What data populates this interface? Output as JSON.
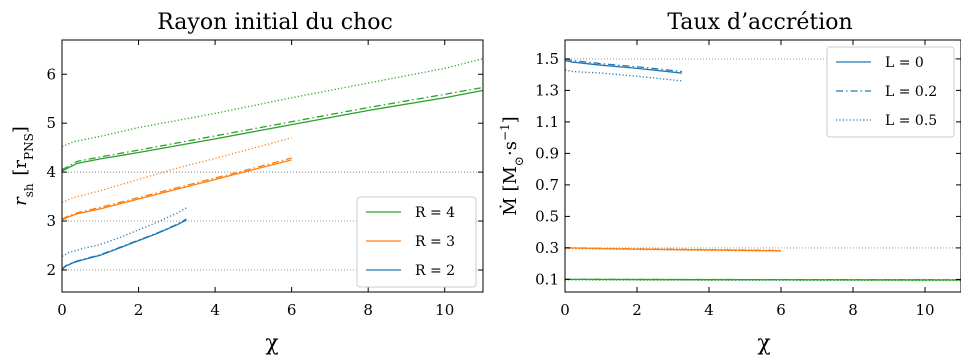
{
  "chart_data": [
    {
      "type": "line",
      "title": "Rayon initial du choc",
      "xlabel": "χ",
      "ylabel": {
        "main": "r",
        "sub": "sh",
        "unit": " [r",
        "unit_sub": "PNS",
        "close": "]"
      },
      "xlim": [
        0,
        11
      ],
      "ylim": [
        1.55,
        6.7
      ],
      "xticks": [
        0,
        2,
        4,
        6,
        8,
        10
      ],
      "yticks": [
        2,
        3,
        4,
        5,
        6
      ],
      "grid": {
        "horizontal_dotted_at": [
          2,
          3,
          4
        ]
      },
      "legend": {
        "placement": "lower-right",
        "entries": [
          {
            "label": "R = 4",
            "color": "#2ca02c"
          },
          {
            "label": "R = 3",
            "color": "#ff7f0e"
          },
          {
            "label": "R = 2",
            "color": "#1f77b4"
          }
        ]
      },
      "series": [
        {
          "group": "R = 4",
          "style": "solid",
          "color": "#2ca02c",
          "points": [
            [
              0,
              4.02
            ],
            [
              0.15,
              4.08
            ],
            [
              0.4,
              4.18
            ],
            [
              1,
              4.27
            ],
            [
              2,
              4.4
            ],
            [
              4,
              4.68
            ],
            [
              6,
              4.97
            ],
            [
              8,
              5.26
            ],
            [
              10,
              5.52
            ],
            [
              11,
              5.67
            ]
          ]
        },
        {
          "group": "R = 4",
          "style": "dashdot",
          "color": "#2ca02c",
          "points": [
            [
              0,
              4.05
            ],
            [
              0.15,
              4.11
            ],
            [
              0.4,
              4.22
            ],
            [
              1,
              4.31
            ],
            [
              2,
              4.45
            ],
            [
              4,
              4.74
            ],
            [
              6,
              5.03
            ],
            [
              8,
              5.32
            ],
            [
              10,
              5.59
            ],
            [
              11,
              5.73
            ]
          ]
        },
        {
          "group": "R = 4",
          "style": "dotted",
          "color": "#2ca02c",
          "points": [
            [
              0,
              4.52
            ],
            [
              0.3,
              4.62
            ],
            [
              1,
              4.73
            ],
            [
              2,
              4.91
            ],
            [
              4,
              5.2
            ],
            [
              6,
              5.52
            ],
            [
              8,
              5.82
            ],
            [
              10,
              6.12
            ],
            [
              11,
              6.32
            ]
          ]
        },
        {
          "group": "R = 3",
          "style": "solid",
          "color": "#ff7f0e",
          "points": [
            [
              0,
              3.02
            ],
            [
              0.15,
              3.08
            ],
            [
              0.4,
              3.15
            ],
            [
              1,
              3.25
            ],
            [
              2,
              3.45
            ],
            [
              3,
              3.65
            ],
            [
              4,
              3.85
            ],
            [
              5,
              4.05
            ],
            [
              6,
              4.25
            ]
          ]
        },
        {
          "group": "R = 3",
          "style": "dashdot",
          "color": "#ff7f0e",
          "points": [
            [
              0,
              3.04
            ],
            [
              0.15,
              3.1
            ],
            [
              0.4,
              3.17
            ],
            [
              1,
              3.28
            ],
            [
              2,
              3.48
            ],
            [
              3,
              3.68
            ],
            [
              4,
              3.88
            ],
            [
              5,
              4.08
            ],
            [
              6,
              4.29
            ]
          ]
        },
        {
          "group": "R = 3",
          "style": "dotted",
          "color": "#ff7f0e",
          "points": [
            [
              0,
              3.38
            ],
            [
              0.3,
              3.48
            ],
            [
              1,
              3.62
            ],
            [
              2,
              3.85
            ],
            [
              3,
              4.08
            ],
            [
              4,
              4.28
            ],
            [
              5,
              4.49
            ],
            [
              6,
              4.7
            ]
          ]
        },
        {
          "group": "R = 2",
          "style": "solid",
          "color": "#1f77b4",
          "points": [
            [
              0,
              2.01
            ],
            [
              0.1,
              2.08
            ],
            [
              0.3,
              2.15
            ],
            [
              0.6,
              2.22
            ],
            [
              1,
              2.3
            ],
            [
              1.5,
              2.45
            ],
            [
              2,
              2.6
            ],
            [
              2.5,
              2.75
            ],
            [
              3,
              2.92
            ],
            [
              3.25,
              3.02
            ]
          ]
        },
        {
          "group": "R = 2",
          "style": "dashdot",
          "color": "#1f77b4",
          "points": [
            [
              0,
              2.02
            ],
            [
              0.1,
              2.09
            ],
            [
              0.3,
              2.16
            ],
            [
              0.6,
              2.23
            ],
            [
              1,
              2.31
            ],
            [
              1.5,
              2.46
            ],
            [
              2,
              2.61
            ],
            [
              2.5,
              2.76
            ],
            [
              3,
              2.93
            ],
            [
              3.25,
              3.04
            ]
          ]
        },
        {
          "group": "R = 2",
          "style": "dotted",
          "color": "#1f77b4",
          "points": [
            [
              0,
              2.28
            ],
            [
              0.2,
              2.36
            ],
            [
              0.6,
              2.45
            ],
            [
              1,
              2.52
            ],
            [
              1.5,
              2.66
            ],
            [
              2,
              2.82
            ],
            [
              2.5,
              2.98
            ],
            [
              3,
              3.16
            ],
            [
              3.25,
              3.27
            ]
          ]
        }
      ]
    },
    {
      "type": "line",
      "title": "Taux d’accrétion",
      "xlabel": "χ",
      "ylabel": {
        "main": "Ṁ [M",
        "sub": "⊙",
        "unit": "·s",
        "sup": "−1",
        "close": "]"
      },
      "xlim": [
        0,
        11
      ],
      "ylim": [
        0.02,
        1.62
      ],
      "xticks": [
        0,
        2,
        4,
        6,
        8,
        10
      ],
      "yticks": [
        0.1,
        0.3,
        0.5,
        0.7,
        0.9,
        1.1,
        1.3,
        1.5
      ],
      "grid": {
        "horizontal_dotted_at": [
          1.5,
          0.3,
          0.1
        ]
      },
      "legend": {
        "placement": "upper-right",
        "entries": [
          {
            "label": "L = 0",
            "style": "solid",
            "color": "#1f77b4"
          },
          {
            "label": "L = 0.2",
            "style": "dashdot",
            "color": "#1f77b4"
          },
          {
            "label": "L = 0.5",
            "style": "dotted",
            "color": "#1f77b4"
          }
        ]
      },
      "series": [
        {
          "group": "R = 2",
          "style": "solid",
          "color": "#1f77b4",
          "points": [
            [
              0,
              1.49
            ],
            [
              0.2,
              1.48
            ],
            [
              1,
              1.46
            ],
            [
              2,
              1.44
            ],
            [
              3.25,
              1.41
            ]
          ]
        },
        {
          "group": "R = 2",
          "style": "dashdot",
          "color": "#1f77b4",
          "points": [
            [
              0,
              1.5
            ],
            [
              0.2,
              1.49
            ],
            [
              1,
              1.47
            ],
            [
              2,
              1.45
            ],
            [
              3.25,
              1.42
            ]
          ]
        },
        {
          "group": "R = 2",
          "style": "dotted",
          "color": "#1f77b4",
          "points": [
            [
              0,
              1.43
            ],
            [
              0.2,
              1.42
            ],
            [
              1,
              1.41
            ],
            [
              2,
              1.39
            ],
            [
              3.25,
              1.36
            ]
          ]
        },
        {
          "group": "R = 3",
          "style": "solid",
          "color": "#ff7f0e",
          "points": [
            [
              0,
              0.3
            ],
            [
              2,
              0.292
            ],
            [
              4,
              0.287
            ],
            [
              6,
              0.282
            ]
          ]
        },
        {
          "group": "R = 3",
          "style": "dashdot",
          "color": "#ff7f0e",
          "points": [
            [
              0,
              0.302
            ],
            [
              2,
              0.294
            ],
            [
              4,
              0.289
            ],
            [
              6,
              0.284
            ]
          ]
        },
        {
          "group": "R = 3",
          "style": "dotted",
          "color": "#ff7f0e",
          "points": [
            [
              0,
              0.296
            ],
            [
              2,
              0.289
            ],
            [
              4,
              0.284
            ],
            [
              6,
              0.279
            ]
          ]
        },
        {
          "group": "R = 4",
          "style": "solid",
          "color": "#2ca02c",
          "points": [
            [
              0,
              0.1
            ],
            [
              4,
              0.098
            ],
            [
              8,
              0.097
            ],
            [
              11,
              0.096
            ]
          ]
        },
        {
          "group": "R = 4",
          "style": "dashdot",
          "color": "#2ca02c",
          "points": [
            [
              0,
              0.101
            ],
            [
              4,
              0.099
            ],
            [
              8,
              0.098
            ],
            [
              11,
              0.097
            ]
          ]
        },
        {
          "group": "R = 4",
          "style": "dotted",
          "color": "#2ca02c",
          "points": [
            [
              0,
              0.097
            ],
            [
              4,
              0.095
            ],
            [
              8,
              0.094
            ],
            [
              11,
              0.093
            ]
          ]
        }
      ]
    }
  ]
}
